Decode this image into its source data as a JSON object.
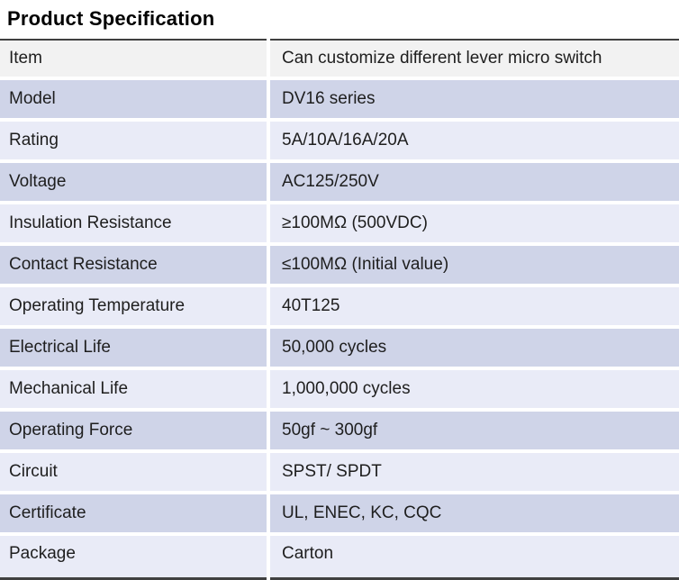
{
  "header": {
    "title": "Product Specification"
  },
  "colors": {
    "header_row": "#f2f2f2",
    "accent_row": "#cfd4e8",
    "plain_row": "#e9ebf7",
    "frame_line": "#404040",
    "text": "#1e1e1e",
    "title_text": "#000000"
  },
  "spec_table": {
    "rows": [
      {
        "label": "Item",
        "value": "Can customize different lever micro switch",
        "tone": "header"
      },
      {
        "label": "Model",
        "value": "DV16 series",
        "tone": "accent"
      },
      {
        "label": "Rating",
        "value": "5A/10A/16A/20A",
        "tone": "plain"
      },
      {
        "label": "Voltage",
        "value": "AC125/250V",
        "tone": "accent"
      },
      {
        "label": "Insulation Resistance",
        "value": "≥100MΩ (500VDC)",
        "tone": "plain"
      },
      {
        "label": "Contact Resistance",
        "value": "≤100MΩ (Initial value)",
        "tone": "accent"
      },
      {
        "label": "Operating Temperature",
        "value": "40T125",
        "tone": "plain"
      },
      {
        "label": "Electrical Life",
        "value": "50,000 cycles",
        "tone": "accent"
      },
      {
        "label": "Mechanical Life",
        "value": "1,000,000 cycles",
        "tone": "plain"
      },
      {
        "label": "Operating Force",
        "value": "50gf ~ 300gf",
        "tone": "accent"
      },
      {
        "label": "Circuit",
        "value": "SPST/ SPDT",
        "tone": "plain"
      },
      {
        "label": "Certificate",
        "value": "UL, ENEC, KC, CQC",
        "tone": "accent"
      },
      {
        "label": "Package",
        "value": "Carton",
        "tone": "plain"
      }
    ]
  }
}
